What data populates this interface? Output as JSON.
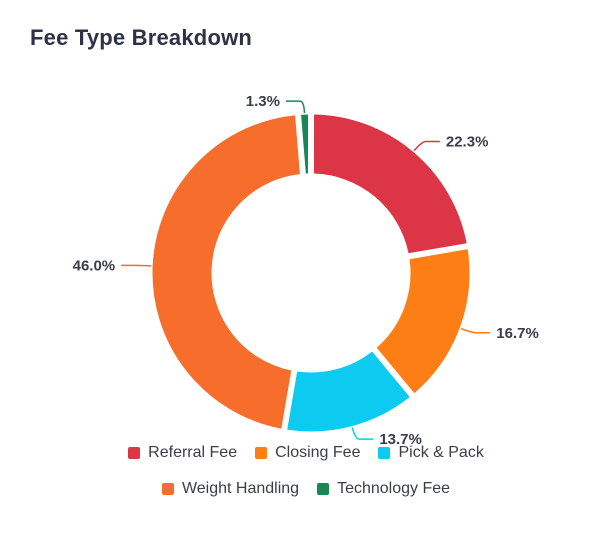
{
  "chart_data": {
    "type": "donut",
    "title": "Fee Type Breakdown",
    "series": [
      {
        "name": "Referral Fee",
        "value": 22.3,
        "label": "22.3%",
        "color": "#dc3545"
      },
      {
        "name": "Closing Fee",
        "value": 16.7,
        "label": "16.7%",
        "color": "#fd7e14"
      },
      {
        "name": "Pick & Pack",
        "value": 13.7,
        "label": "13.7%",
        "color": "#0dcaf0"
      },
      {
        "name": "Weight Handling",
        "value": 46.0,
        "label": "46.0%",
        "color": "#f76d2b"
      },
      {
        "name": "Technology Fee",
        "value": 1.3,
        "label": "1.3%",
        "color": "#198754"
      }
    ],
    "legend_position": "bottom"
  }
}
